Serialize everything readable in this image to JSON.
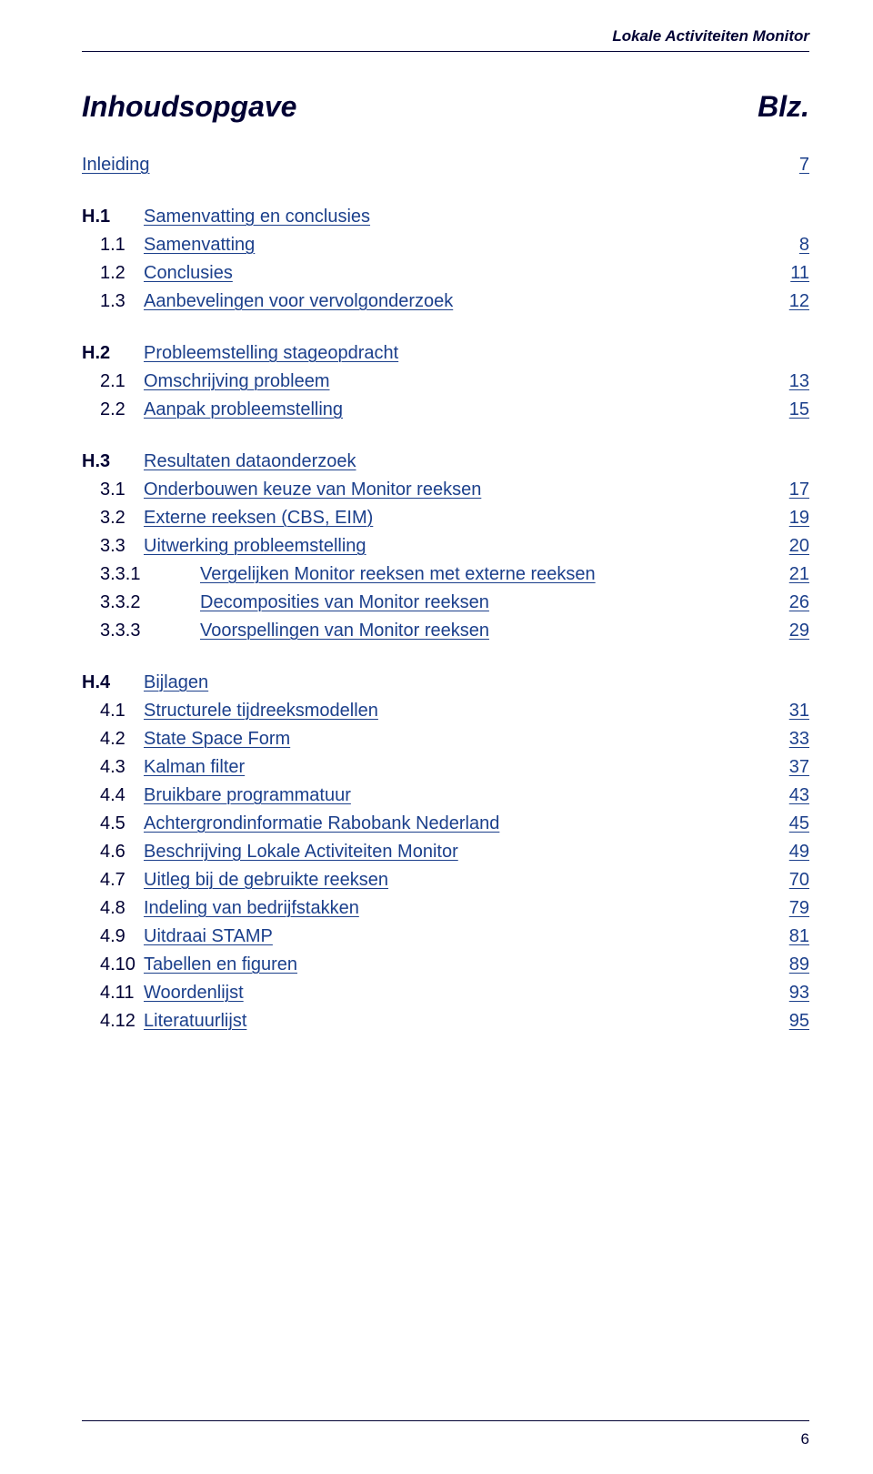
{
  "running_head": "Lokale Activiteiten Monitor",
  "title": "Inhoudsopgave",
  "page_col_header": "Blz.",
  "page_number": "6",
  "colors": {
    "text": "#000033",
    "link": "#1b3f8b",
    "background": "#ffffff"
  },
  "toc": {
    "inleiding": {
      "label": "Inleiding",
      "page": "7"
    },
    "h1": {
      "num": "H.1",
      "label": "Samenvatting en conclusies",
      "items": [
        {
          "num": "1.1",
          "label": "Samenvatting",
          "page": "8"
        },
        {
          "num": "1.2",
          "label": "Conclusies",
          "page": "11"
        },
        {
          "num": "1.3",
          "label": "Aanbevelingen voor vervolgonderzoek",
          "page": "12"
        }
      ]
    },
    "h2": {
      "num": "H.2",
      "label": "Probleemstelling stageopdracht",
      "items": [
        {
          "num": "2.1",
          "label": "Omschrijving probleem",
          "page": "13"
        },
        {
          "num": "2.2",
          "label": "Aanpak probleemstelling",
          "page": "15"
        }
      ]
    },
    "h3": {
      "num": "H.3",
      "label": "Resultaten dataonderzoek",
      "items": [
        {
          "num": "3.1",
          "label": "Onderbouwen keuze van Monitor reeksen",
          "page": "17"
        },
        {
          "num": "3.2",
          "label": "Externe reeksen (CBS, EIM)",
          "page": "19"
        },
        {
          "num": "3.3",
          "label": "Uitwerking probleemstelling",
          "page": "20"
        }
      ],
      "subitems": [
        {
          "num": "3.3.1",
          "label": "Vergelijken Monitor reeksen met externe reeksen",
          "page": "21"
        },
        {
          "num": "3.3.2",
          "label": "Decomposities van Monitor reeksen",
          "page": "26"
        },
        {
          "num": "3.3.3",
          "label": "Voorspellingen van Monitor reeksen",
          "page": "29"
        }
      ]
    },
    "h4": {
      "num": "H.4",
      "label": "Bijlagen",
      "items": [
        {
          "num": "4.1",
          "label": "Structurele tijdreeksmodellen",
          "page": "31"
        },
        {
          "num": "4.2",
          "label": "State Space Form",
          "page": "33"
        },
        {
          "num": "4.3",
          "label": "Kalman filter",
          "page": "37"
        },
        {
          "num": "4.4",
          "label": "Bruikbare programmatuur",
          "page": "43"
        },
        {
          "num": "4.5",
          "label": "Achtergrondinformatie Rabobank Nederland",
          "page": "45"
        },
        {
          "num": "4.6",
          "label": "Beschrijving Lokale Activiteiten Monitor",
          "page": "49"
        },
        {
          "num": "4.7",
          "label": "Uitleg bij de gebruikte reeksen",
          "page": "70"
        },
        {
          "num": "4.8",
          "label": "Indeling van bedrijfstakken",
          "page": "79"
        },
        {
          "num": "4.9",
          "label": "Uitdraai STAMP",
          "page": "81"
        },
        {
          "num": "4.10",
          "label": "Tabellen en figuren",
          "page": "89"
        },
        {
          "num": "4.11",
          "label": "Woordenlijst",
          "page": "93"
        },
        {
          "num": "4.12",
          "label": "Literatuurlijst",
          "page": "95"
        }
      ]
    }
  }
}
